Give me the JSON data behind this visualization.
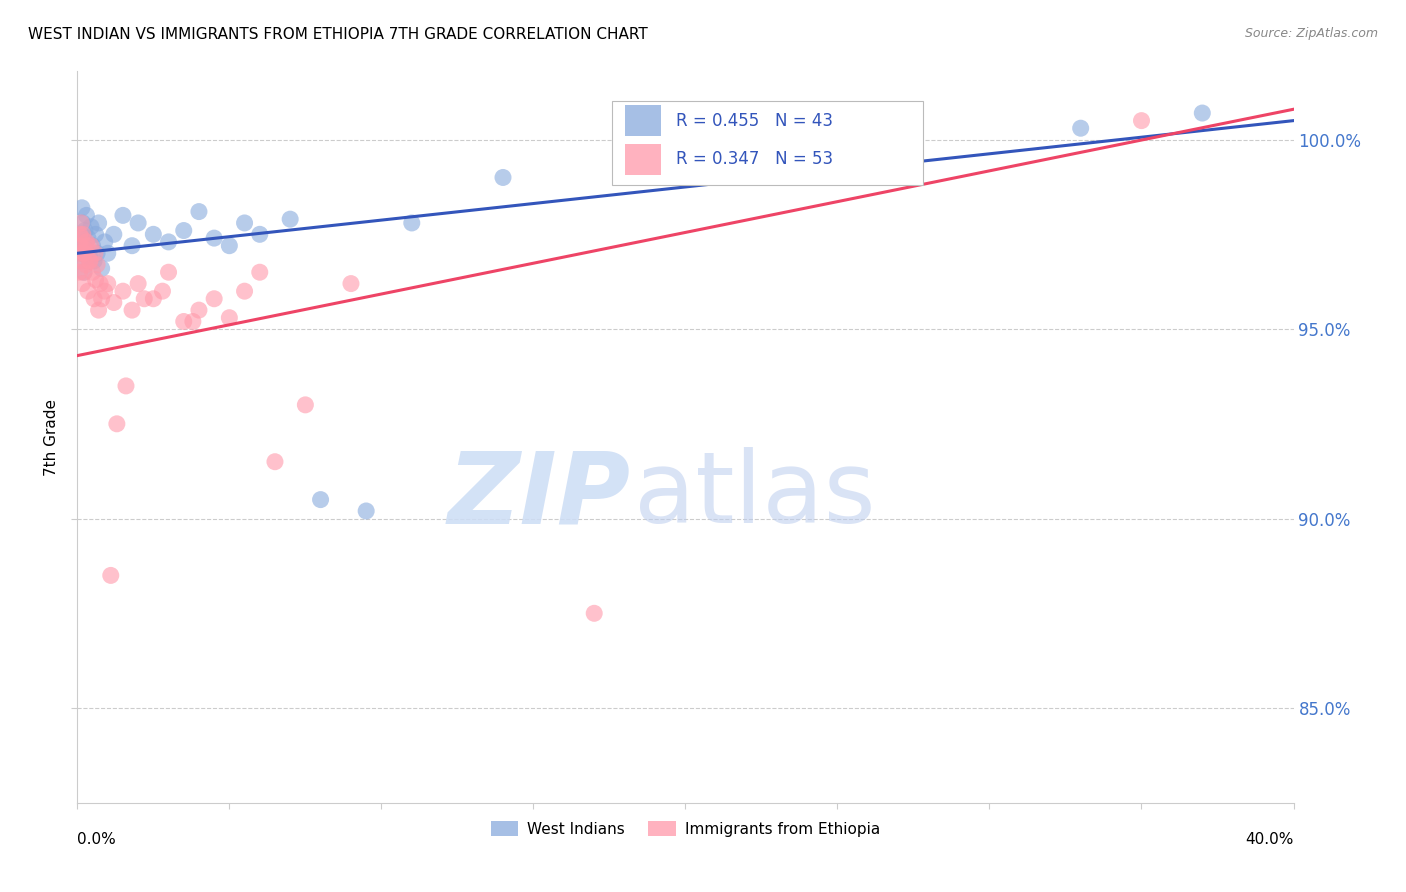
{
  "title": "WEST INDIAN VS IMMIGRANTS FROM ETHIOPIA 7TH GRADE CORRELATION CHART",
  "source": "Source: ZipAtlas.com",
  "ylabel": "7th Grade",
  "x_range": [
    0.0,
    40.0
  ],
  "y_range": [
    82.5,
    101.8
  ],
  "blue_R": 0.455,
  "blue_N": 43,
  "pink_R": 0.347,
  "pink_N": 53,
  "blue_color": "#88AADD",
  "pink_color": "#FF99AA",
  "line_blue": "#3355BB",
  "line_pink": "#EE4466",
  "legend_text_color": "#3355BB",
  "y_ticks": [
    85.0,
    90.0,
    95.0,
    100.0
  ],
  "y_tick_labels": [
    "85.0%",
    "90.0%",
    "95.0%",
    "100.0%"
  ],
  "blue_line_y0": 97.0,
  "blue_line_y1": 100.5,
  "pink_line_y0": 94.3,
  "pink_line_y1": 100.8,
  "blue_x": [
    0.05,
    0.08,
    0.1,
    0.12,
    0.15,
    0.18,
    0.2,
    0.22,
    0.25,
    0.28,
    0.3,
    0.35,
    0.4,
    0.45,
    0.5,
    0.55,
    0.6,
    0.65,
    0.7,
    0.8,
    0.9,
    1.0,
    1.2,
    1.5,
    1.8,
    2.0,
    2.5,
    3.0,
    3.5,
    4.0,
    4.5,
    5.0,
    5.5,
    6.0,
    7.0,
    8.0,
    9.5,
    11.0,
    14.0,
    20.0,
    27.0,
    33.0,
    37.0
  ],
  "blue_y": [
    97.2,
    96.8,
    97.5,
    97.0,
    98.2,
    97.8,
    97.3,
    96.5,
    97.6,
    97.1,
    98.0,
    97.4,
    96.9,
    97.7,
    97.2,
    96.8,
    97.5,
    97.0,
    97.8,
    96.6,
    97.3,
    97.0,
    97.5,
    98.0,
    97.2,
    97.8,
    97.5,
    97.3,
    97.6,
    98.1,
    97.4,
    97.2,
    97.8,
    97.5,
    97.9,
    90.5,
    90.2,
    97.8,
    99.0,
    100.2,
    100.5,
    100.3,
    100.7
  ],
  "pink_x": [
    0.05,
    0.07,
    0.1,
    0.12,
    0.15,
    0.17,
    0.2,
    0.22,
    0.25,
    0.28,
    0.3,
    0.35,
    0.4,
    0.45,
    0.5,
    0.55,
    0.6,
    0.65,
    0.7,
    0.75,
    0.8,
    0.9,
    1.0,
    1.2,
    1.5,
    1.8,
    2.0,
    2.5,
    3.0,
    3.5,
    4.0,
    5.0,
    5.5,
    6.5,
    7.5,
    9.0,
    1.3,
    1.6,
    2.2,
    2.8,
    3.8,
    4.5,
    6.0,
    0.08,
    0.13,
    0.18,
    0.23,
    0.33,
    0.42,
    0.58,
    1.1,
    17.0,
    35.0
  ],
  "pink_y": [
    97.0,
    96.5,
    97.2,
    96.8,
    97.4,
    96.2,
    97.0,
    96.5,
    97.1,
    96.7,
    97.3,
    96.0,
    96.8,
    97.2,
    96.5,
    95.8,
    96.3,
    96.7,
    95.5,
    96.2,
    95.8,
    96.0,
    96.2,
    95.7,
    96.0,
    95.5,
    96.2,
    95.8,
    96.5,
    95.2,
    95.5,
    95.3,
    96.0,
    91.5,
    93.0,
    96.2,
    92.5,
    93.5,
    95.8,
    96.0,
    95.2,
    95.8,
    96.5,
    97.5,
    97.8,
    97.5,
    97.0,
    97.2,
    96.8,
    97.0,
    88.5,
    87.5,
    100.5
  ]
}
